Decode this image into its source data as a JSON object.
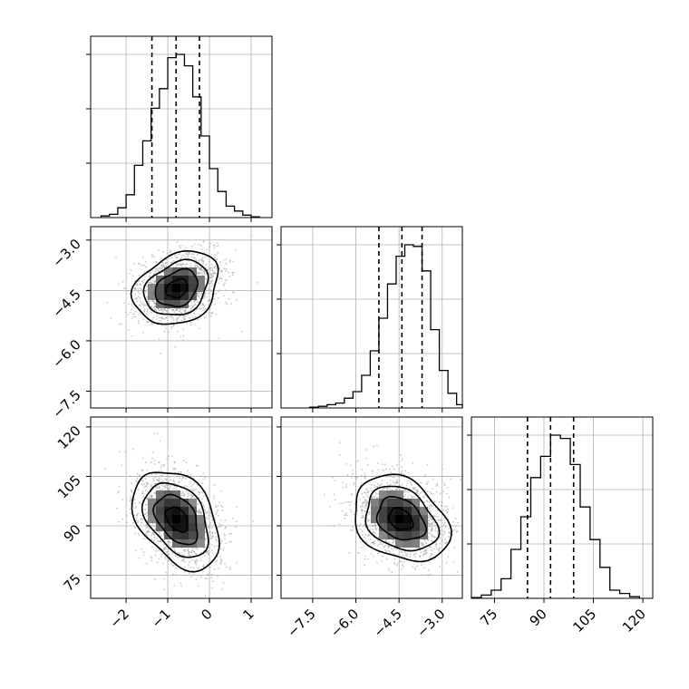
{
  "chart_data": {
    "type": "corner",
    "parameters": [
      {
        "index": 0,
        "xlim": [
          -2.85,
          1.5
        ],
        "ticks": [
          -2,
          -1,
          0,
          1
        ],
        "tick_labels": [
          "−2",
          "−1",
          "0",
          "1"
        ],
        "quantiles": [
          -1.38,
          -0.8,
          -0.24
        ],
        "histogram": {
          "edges": [
            -2.6,
            -2.4,
            -2.2,
            -2.0,
            -1.8,
            -1.6,
            -1.4,
            -1.2,
            -1.0,
            -0.8,
            -0.6,
            -0.4,
            -0.2,
            0.0,
            0.2,
            0.4,
            0.6,
            0.8,
            1.0,
            1.2
          ],
          "counts": [
            0.01,
            0.02,
            0.06,
            0.14,
            0.32,
            0.47,
            0.67,
            0.79,
            0.98,
            1.0,
            0.93,
            0.74,
            0.5,
            0.3,
            0.16,
            0.07,
            0.04,
            0.015,
            0.005
          ]
        }
      },
      {
        "index": 1,
        "xlim": [
          -8.6,
          -2.3
        ],
        "ticks": [
          -7.5,
          -6.0,
          -4.5,
          -3.0
        ],
        "tick_labels": [
          "−7.5",
          "−6.0",
          "−4.5",
          "−3.0"
        ],
        "quantiles": [
          -5.2,
          -4.4,
          -3.7
        ],
        "histogram": {
          "edges": [
            -7.6,
            -7.3,
            -7.0,
            -6.7,
            -6.4,
            -6.1,
            -5.8,
            -5.5,
            -5.2,
            -4.9,
            -4.6,
            -4.3,
            -4.0,
            -3.7,
            -3.4,
            -3.1,
            -2.8,
            -2.5,
            -2.3
          ],
          "counts": [
            0.005,
            0.01,
            0.02,
            0.03,
            0.06,
            0.1,
            0.2,
            0.35,
            0.55,
            0.76,
            0.93,
            1.0,
            0.99,
            0.84,
            0.48,
            0.23,
            0.09,
            0.02
          ]
        }
      },
      {
        "index": 2,
        "xlim": [
          68,
          123
        ],
        "ticks": [
          75,
          90,
          105,
          120
        ],
        "tick_labels": [
          "75",
          "90",
          "105",
          "120"
        ],
        "quantiles": [
          85,
          92,
          99
        ],
        "histogram": {
          "edges": [
            68,
            71,
            74,
            77,
            80,
            83,
            86,
            89,
            92,
            95,
            98,
            101,
            104,
            107,
            110,
            113,
            116,
            119
          ],
          "counts": [
            0.005,
            0.02,
            0.05,
            0.12,
            0.3,
            0.5,
            0.74,
            0.87,
            1.0,
            0.98,
            0.82,
            0.56,
            0.36,
            0.19,
            0.05,
            0.03,
            0.01
          ]
        }
      }
    ],
    "pairs": [
      {
        "x_param": 0,
        "y_param": 1,
        "center": [
          -0.78,
          -4.44
        ],
        "sd": [
          0.45,
          0.62
        ],
        "angle_deg": 150,
        "ylim": [
          -8.0,
          -2.6
        ],
        "y_ticks": [
          -3.0,
          -4.5,
          -6.0,
          -7.5
        ],
        "y_tick_labels": [
          "−3.0",
          "−4.5",
          "−6.0",
          "−7.5"
        ],
        "contour_levels": [
          0.5,
          1.0,
          1.5,
          2.0
        ]
      },
      {
        "x_param": 0,
        "y_param": 2,
        "center": [
          -0.78,
          92.0
        ],
        "sd": [
          0.55,
          6.8
        ],
        "angle_deg": 55,
        "ylim": [
          68,
          123
        ],
        "y_ticks": [
          120,
          105,
          90,
          75
        ],
        "y_tick_labels": [
          "120",
          "105",
          "90",
          "75"
        ],
        "contour_levels": [
          0.5,
          1.0,
          1.5,
          2.0
        ]
      },
      {
        "x_param": 1,
        "y_param": 2,
        "center": [
          -4.44,
          92.0
        ],
        "sd": [
          0.75,
          7.2
        ],
        "angle_deg": 35,
        "ylim": [
          68,
          123
        ],
        "contour_levels": [
          0.5,
          1.0,
          1.5,
          2.0
        ]
      }
    ],
    "grid": true,
    "colors": {
      "line": "#000000",
      "scatter": "#9a9a9a",
      "grid": "#b0b0b0"
    }
  }
}
